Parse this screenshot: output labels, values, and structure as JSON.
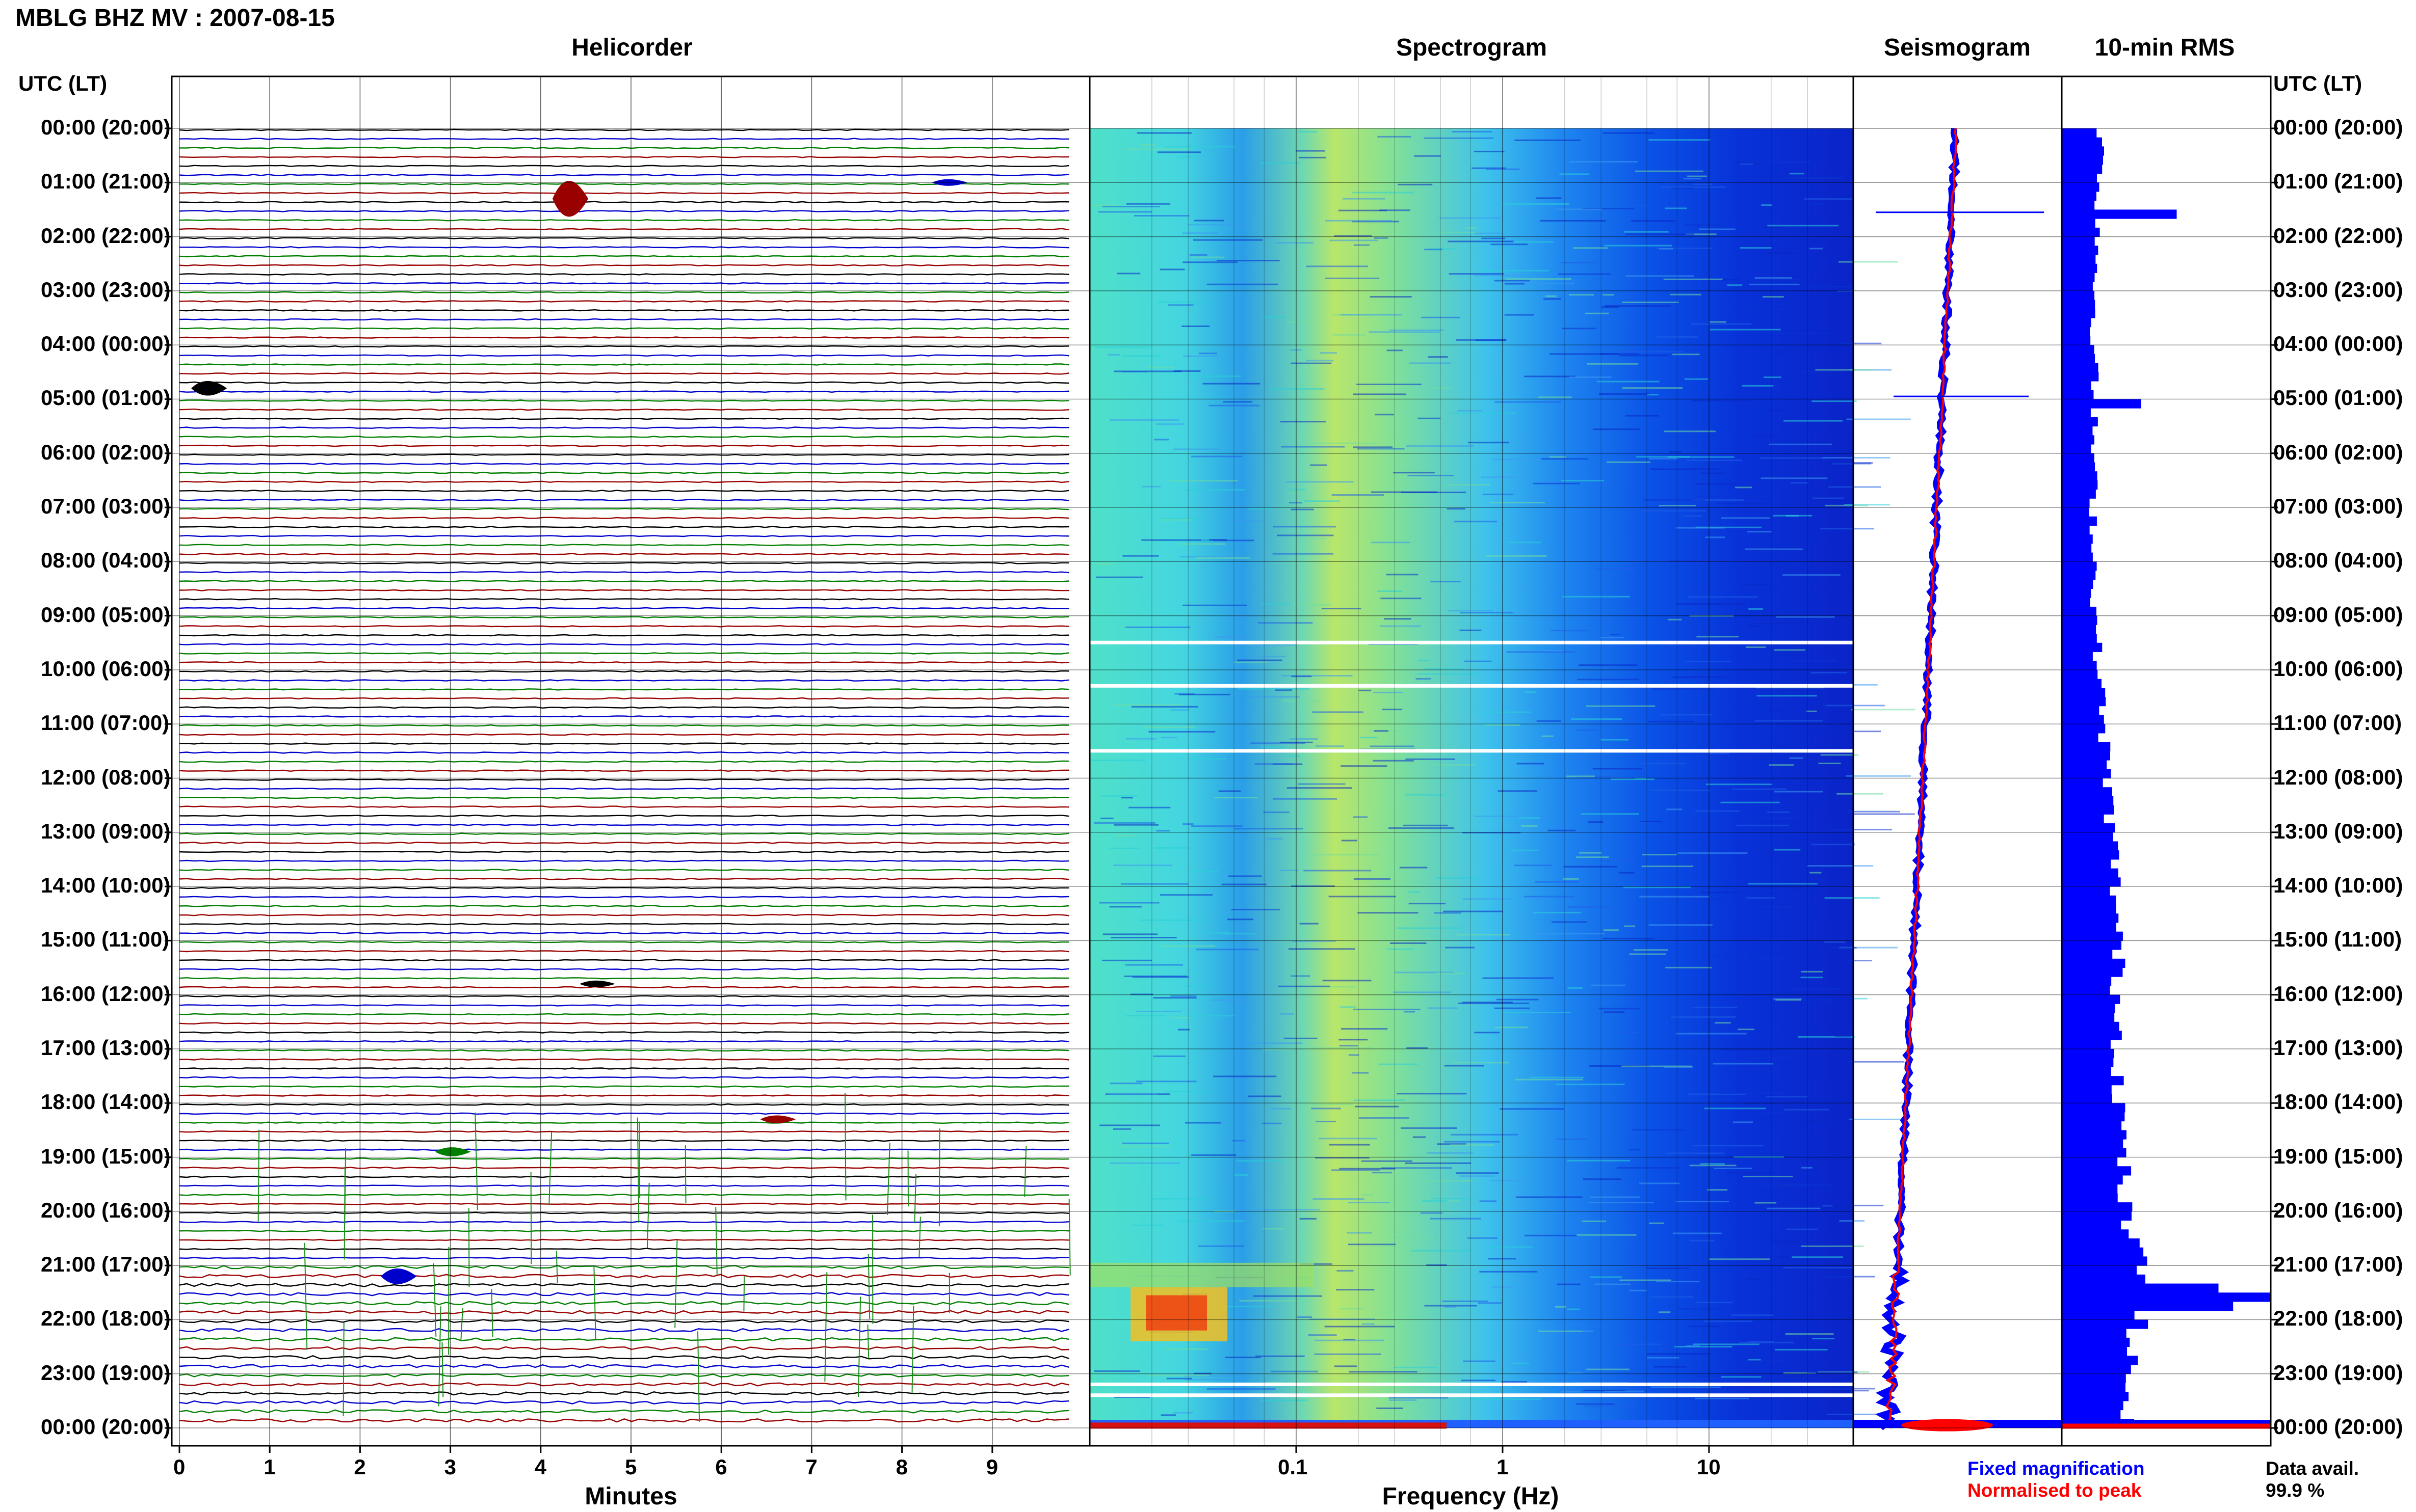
{
  "title": "MBLG BHZ MV : 2007-08-15",
  "panels": {
    "helicorder": "Helicorder",
    "spectrogram": "Spectrogram",
    "seismogram": "Seismogram",
    "rms": "10-min RMS"
  },
  "time_axis": {
    "label_left": "UTC (LT)",
    "label_right": "UTC (LT)",
    "ticks": [
      "00:00 (20:00)",
      "01:00 (21:00)",
      "02:00 (22:00)",
      "03:00 (23:00)",
      "04:00 (00:00)",
      "05:00 (01:00)",
      "06:00 (02:00)",
      "07:00 (03:00)",
      "08:00 (04:00)",
      "09:00 (05:00)",
      "10:00 (06:00)",
      "11:00 (07:00)",
      "12:00 (08:00)",
      "13:00 (09:00)",
      "14:00 (10:00)",
      "15:00 (11:00)",
      "16:00 (12:00)",
      "17:00 (13:00)",
      "18:00 (14:00)",
      "19:00 (15:00)",
      "20:00 (16:00)",
      "21:00 (17:00)",
      "22:00 (18:00)",
      "23:00 (19:00)",
      "00:00 (20:00)"
    ]
  },
  "legend": {
    "fixed": "Fixed magnification",
    "normalised": "Normalised to peak",
    "fixed_color": "#0000ff",
    "normalised_color": "#ff0000"
  },
  "data_avail": {
    "label": "Data avail.",
    "value": "99.9 %"
  },
  "chart_data": [
    {
      "type": "line",
      "panel": "helicorder",
      "xlabel": "Minutes",
      "xlim": [
        0,
        10
      ],
      "x_ticks": [
        "0",
        "1",
        "2",
        "3",
        "4",
        "5",
        "6",
        "7",
        "8",
        "9"
      ],
      "rows_per_hour": 6,
      "trace_colors": [
        "#000000",
        "#0000cc",
        "#007f00",
        "#990000"
      ],
      "events": [
        {
          "hour": 1.3,
          "minute": 4.3,
          "amp": 3.2
        },
        {
          "hour": 4.8,
          "minute": 0.3,
          "amp": 1.3
        },
        {
          "hour": 21.2,
          "minute": 2.4,
          "amp": 1.4
        },
        {
          "hour": 18.9,
          "minute": 3.0,
          "amp": 0.8
        },
        {
          "hour": 18.3,
          "minute": 6.6,
          "amp": 0.7
        },
        {
          "hour": 15.8,
          "minute": 4.6,
          "amp": 0.6
        },
        {
          "hour": 1.0,
          "minute": 8.5,
          "amp": 0.6
        }
      ]
    },
    {
      "type": "heatmap",
      "panel": "spectrogram",
      "xlabel": "Frequency (Hz)",
      "xscale": "log",
      "xlim": [
        0.01,
        50
      ],
      "x_ticks": [
        {
          "value": 0.1,
          "label": "0.1"
        },
        {
          "value": 1,
          "label": "1"
        },
        {
          "value": 10,
          "label": "10"
        }
      ],
      "colormap": "jet"
    },
    {
      "type": "line",
      "panel": "seismogram",
      "series": [
        {
          "name": "Fixed magnification",
          "color": "#0000ff"
        },
        {
          "name": "Normalised to peak",
          "color": "#ff0000"
        }
      ]
    },
    {
      "type": "bar",
      "panel": "rms",
      "orientation": "horizontal",
      "bin_minutes": 10,
      "color": "#0000ff",
      "profile": [
        {
          "hour": 0.0,
          "value": 0.19
        },
        {
          "hour": 1.5,
          "value": 0.18
        },
        {
          "hour": 3.0,
          "value": 0.16
        },
        {
          "hour": 6.0,
          "value": 0.15
        },
        {
          "hour": 9.0,
          "value": 0.16
        },
        {
          "hour": 12.0,
          "value": 0.22
        },
        {
          "hour": 14.0,
          "value": 0.26
        },
        {
          "hour": 16.0,
          "value": 0.27
        },
        {
          "hour": 18.0,
          "value": 0.28
        },
        {
          "hour": 20.0,
          "value": 0.3
        },
        {
          "hour": 21.3,
          "value": 0.4
        },
        {
          "hour": 22.5,
          "value": 0.33
        },
        {
          "hour": 24.0,
          "value": 0.3
        }
      ],
      "spikes": [
        {
          "hour": 1.5,
          "value": 0.55
        },
        {
          "hour": 4.95,
          "value": 0.38
        },
        {
          "hour": 21.4,
          "value": 0.75
        },
        {
          "hour": 21.5,
          "value": 1.0
        },
        {
          "hour": 21.6,
          "value": 0.82
        }
      ]
    }
  ]
}
